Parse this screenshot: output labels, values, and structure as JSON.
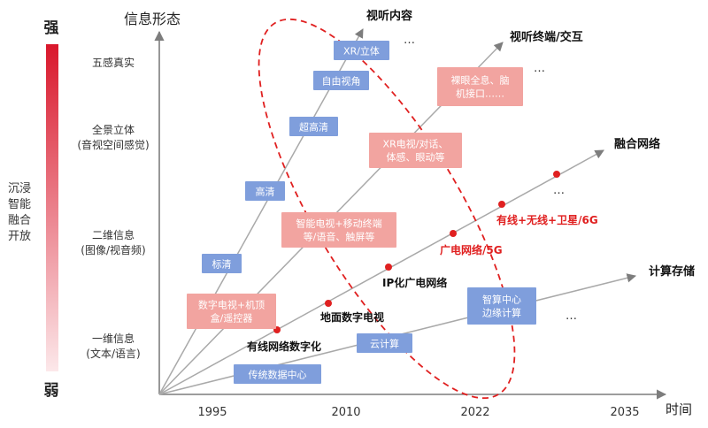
{
  "colors": {
    "accent_red": "#e02020",
    "blue_box": "#7f9edc",
    "red_box": "#f2a4a0",
    "axis": "#7d7d7d",
    "gradient_top": "#d9172b",
    "gradient_bottom": "#fce8ea"
  },
  "scale": {
    "top": "强",
    "bottom": "弱",
    "side_label_lines": [
      "沉浸",
      "智能",
      "融合",
      "开放"
    ]
  },
  "axes": {
    "y_title": "信息形态",
    "x_title": "时间",
    "y_levels": [
      {
        "lines": [
          "五感真实"
        ]
      },
      {
        "lines": [
          "全景立体",
          "(音视空间感觉)"
        ]
      },
      {
        "lines": [
          "二维信息",
          "(图像/视音频)"
        ]
      },
      {
        "lines": [
          "一维信息",
          "(文本/语言)"
        ]
      }
    ],
    "x_ticks": [
      "1995",
      "2010",
      "2022",
      "2035"
    ]
  },
  "line_ends": {
    "content": "视听内容",
    "terminal": "视听终端/交互",
    "network": "融合网络",
    "compute": "计算存储"
  },
  "ellipsis": "…",
  "blue_boxes": {
    "b1": "XR/立体",
    "b2": "自由视角",
    "b3": "超高清",
    "b4": "高清",
    "b5": "标清",
    "b6": "传统数据中心",
    "b7": "云计算",
    "b8": "智算中心\n边缘计算"
  },
  "red_boxes": {
    "r1": "裸眼全息、脑\n机接口……",
    "r2": "XR电视/对话、\n体感、眼动等",
    "r3": "智能电视+移动终端\n等/语音、触屏等",
    "r4": "数字电视+机顶\n盒/遥控器"
  },
  "milestones": {
    "m1": "有线网络数字化",
    "m2": "地面数字电视",
    "m3": "IP化广电网络",
    "m4": "广电网络/5G",
    "m5": "有线+无线+卫星/6G"
  }
}
